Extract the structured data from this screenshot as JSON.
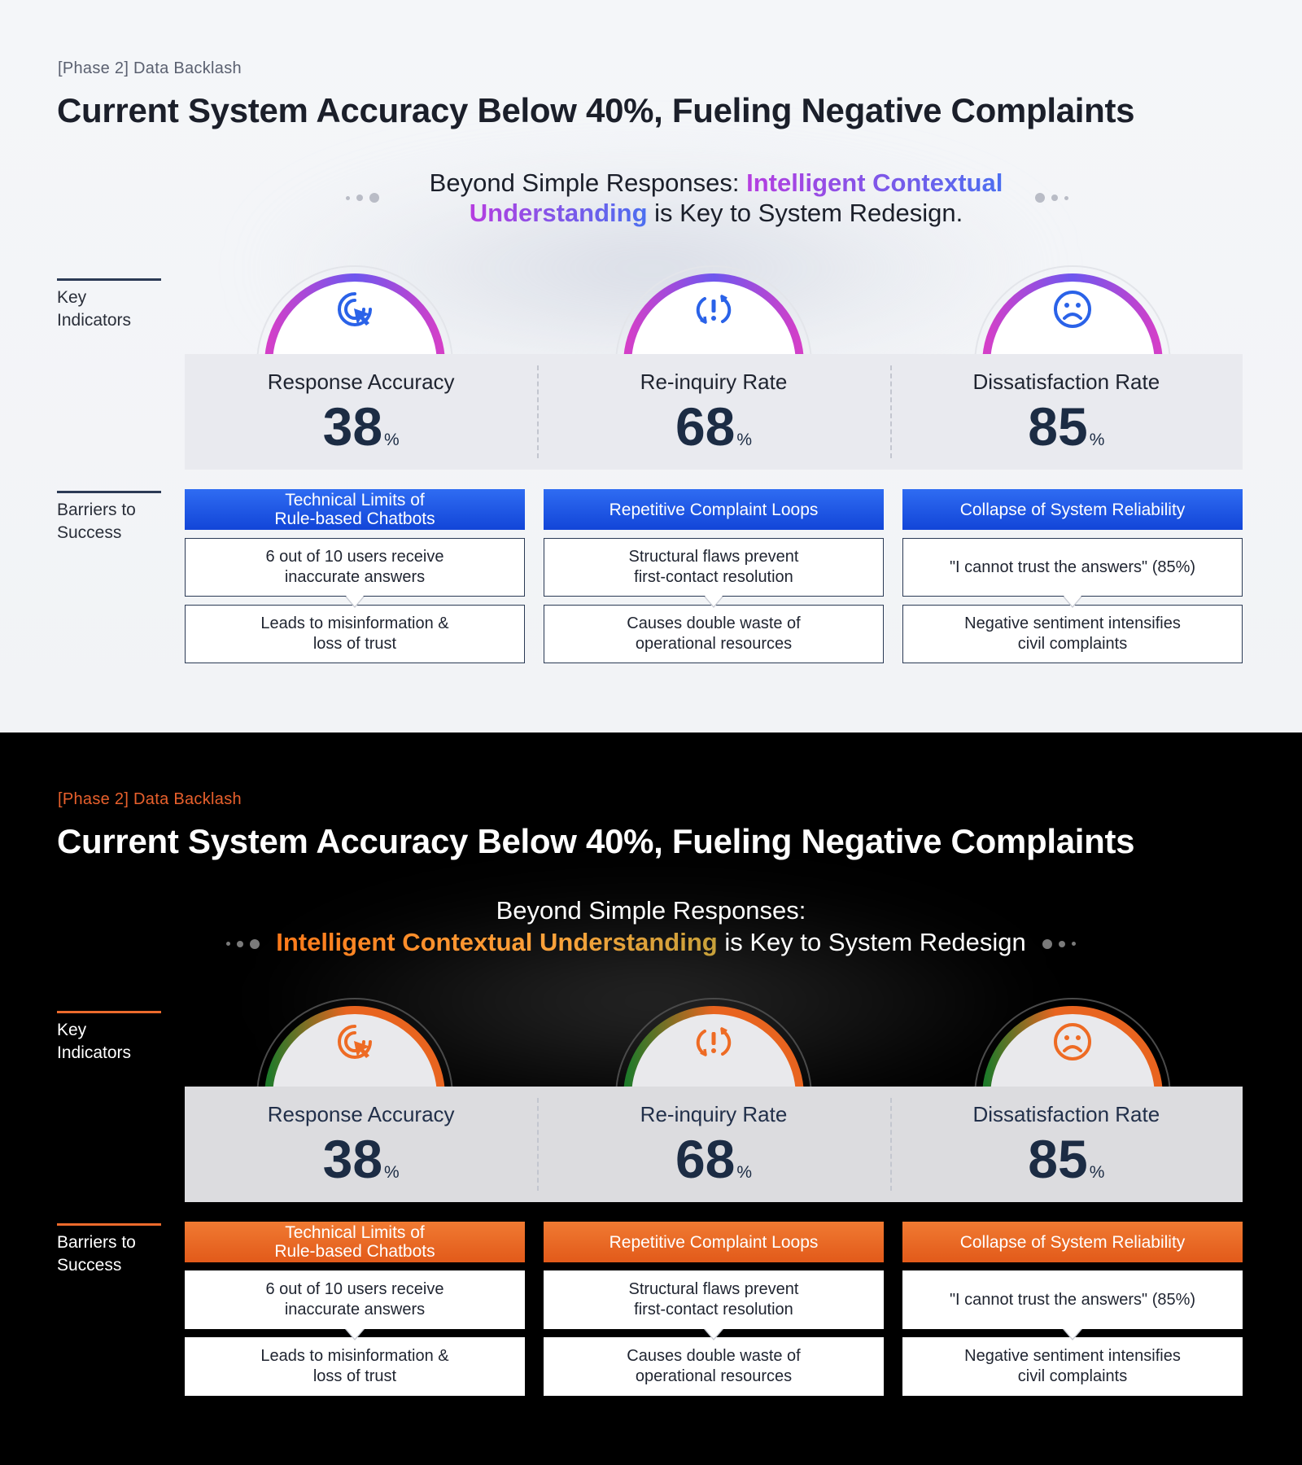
{
  "slides": [
    {
      "theme": "light",
      "phase_label": "[Phase 2] Data Backlash",
      "title": "Current System Accuracy Below 40%, Fueling Negative Complaints",
      "tagline": {
        "prefix": "Beyond Simple Responses:",
        "highlight_a": "Intelligent Contextual",
        "highlight_b": "Understanding",
        "suffix": "is Key to System Redesign."
      },
      "section_labels": {
        "indicators": "Key Indicators",
        "barriers": "Barriers to Success"
      },
      "metrics": [
        {
          "label": "Response Accuracy",
          "value": "38",
          "unit": "%",
          "icon": "cursor-click-icon"
        },
        {
          "label": "Re-inquiry Rate",
          "value": "68",
          "unit": "%",
          "icon": "repeat-alert-icon"
        },
        {
          "label": "Dissatisfaction Rate",
          "value": "85",
          "unit": "%",
          "icon": "sad-face-icon"
        }
      ],
      "barriers": [
        {
          "header_line1": "Technical Limits of",
          "header_line2": "Rule-based Chatbots",
          "cause_line1": "6 out of 10 users receive",
          "cause_line2": "inaccurate answers",
          "effect_line1": "Leads to misinformation &",
          "effect_line2": "loss of trust"
        },
        {
          "header_line1": "Repetitive Complaint Loops",
          "header_line2": "",
          "cause_line1": "Structural flaws prevent",
          "cause_line2": "first-contact resolution",
          "effect_line1": "Causes double waste of",
          "effect_line2": "operational resources"
        },
        {
          "header_line1": "Collapse of System Reliability",
          "header_line2": "",
          "cause_line1": "\"I cannot trust the answers\" (85%)",
          "cause_line2": "",
          "effect_line1": "Negative sentiment intensifies",
          "effect_line2": "civil complaints"
        }
      ],
      "colors": {
        "accent_start": "#b63de0",
        "accent_end": "#4b6ff0",
        "header_bg": "#1a4fe0",
        "icon": "#2a62e8"
      }
    },
    {
      "theme": "dark",
      "phase_label": "[Phase 2] Data Backlash",
      "title": "Current System Accuracy Below 40%, Fueling Negative Complaints",
      "tagline": {
        "prefix": "Beyond Simple Responses:",
        "highlight_a": "Intelligent Contextual Understanding",
        "highlight_b": "",
        "suffix": "is Key to System Redesign"
      },
      "section_labels": {
        "indicators": "Key Indicators",
        "barriers": "Barriers to Success"
      },
      "metrics": [
        {
          "label": "Response Accuracy",
          "value": "38",
          "unit": "%",
          "icon": "cursor-click-icon"
        },
        {
          "label": "Re-inquiry Rate",
          "value": "68",
          "unit": "%",
          "icon": "repeat-alert-icon"
        },
        {
          "label": "Dissatisfaction Rate",
          "value": "85",
          "unit": "%",
          "icon": "sad-face-icon"
        }
      ],
      "barriers": [
        {
          "header_line1": "Technical Limits of",
          "header_line2": "Rule-based Chatbots",
          "cause_line1": "6 out of 10 users receive",
          "cause_line2": "inaccurate answers",
          "effect_line1": "Leads to misinformation &",
          "effect_line2": "loss of trust"
        },
        {
          "header_line1": "Repetitive Complaint Loops",
          "header_line2": "",
          "cause_line1": "Structural flaws prevent",
          "cause_line2": "first-contact resolution",
          "effect_line1": "Causes double waste of",
          "effect_line2": "operational resources"
        },
        {
          "header_line1": "Collapse of System Reliability",
          "header_line2": "",
          "cause_line1": "\"I cannot trust the answers\" (85%)",
          "cause_line2": "",
          "effect_line1": "Negative sentiment intensifies",
          "effect_line2": "civil complaints"
        }
      ],
      "colors": {
        "accent_start": "#2e8a2a",
        "accent_end": "#ee6b24",
        "header_bg": "#e8641f",
        "icon": "#ee6b24"
      }
    }
  ]
}
